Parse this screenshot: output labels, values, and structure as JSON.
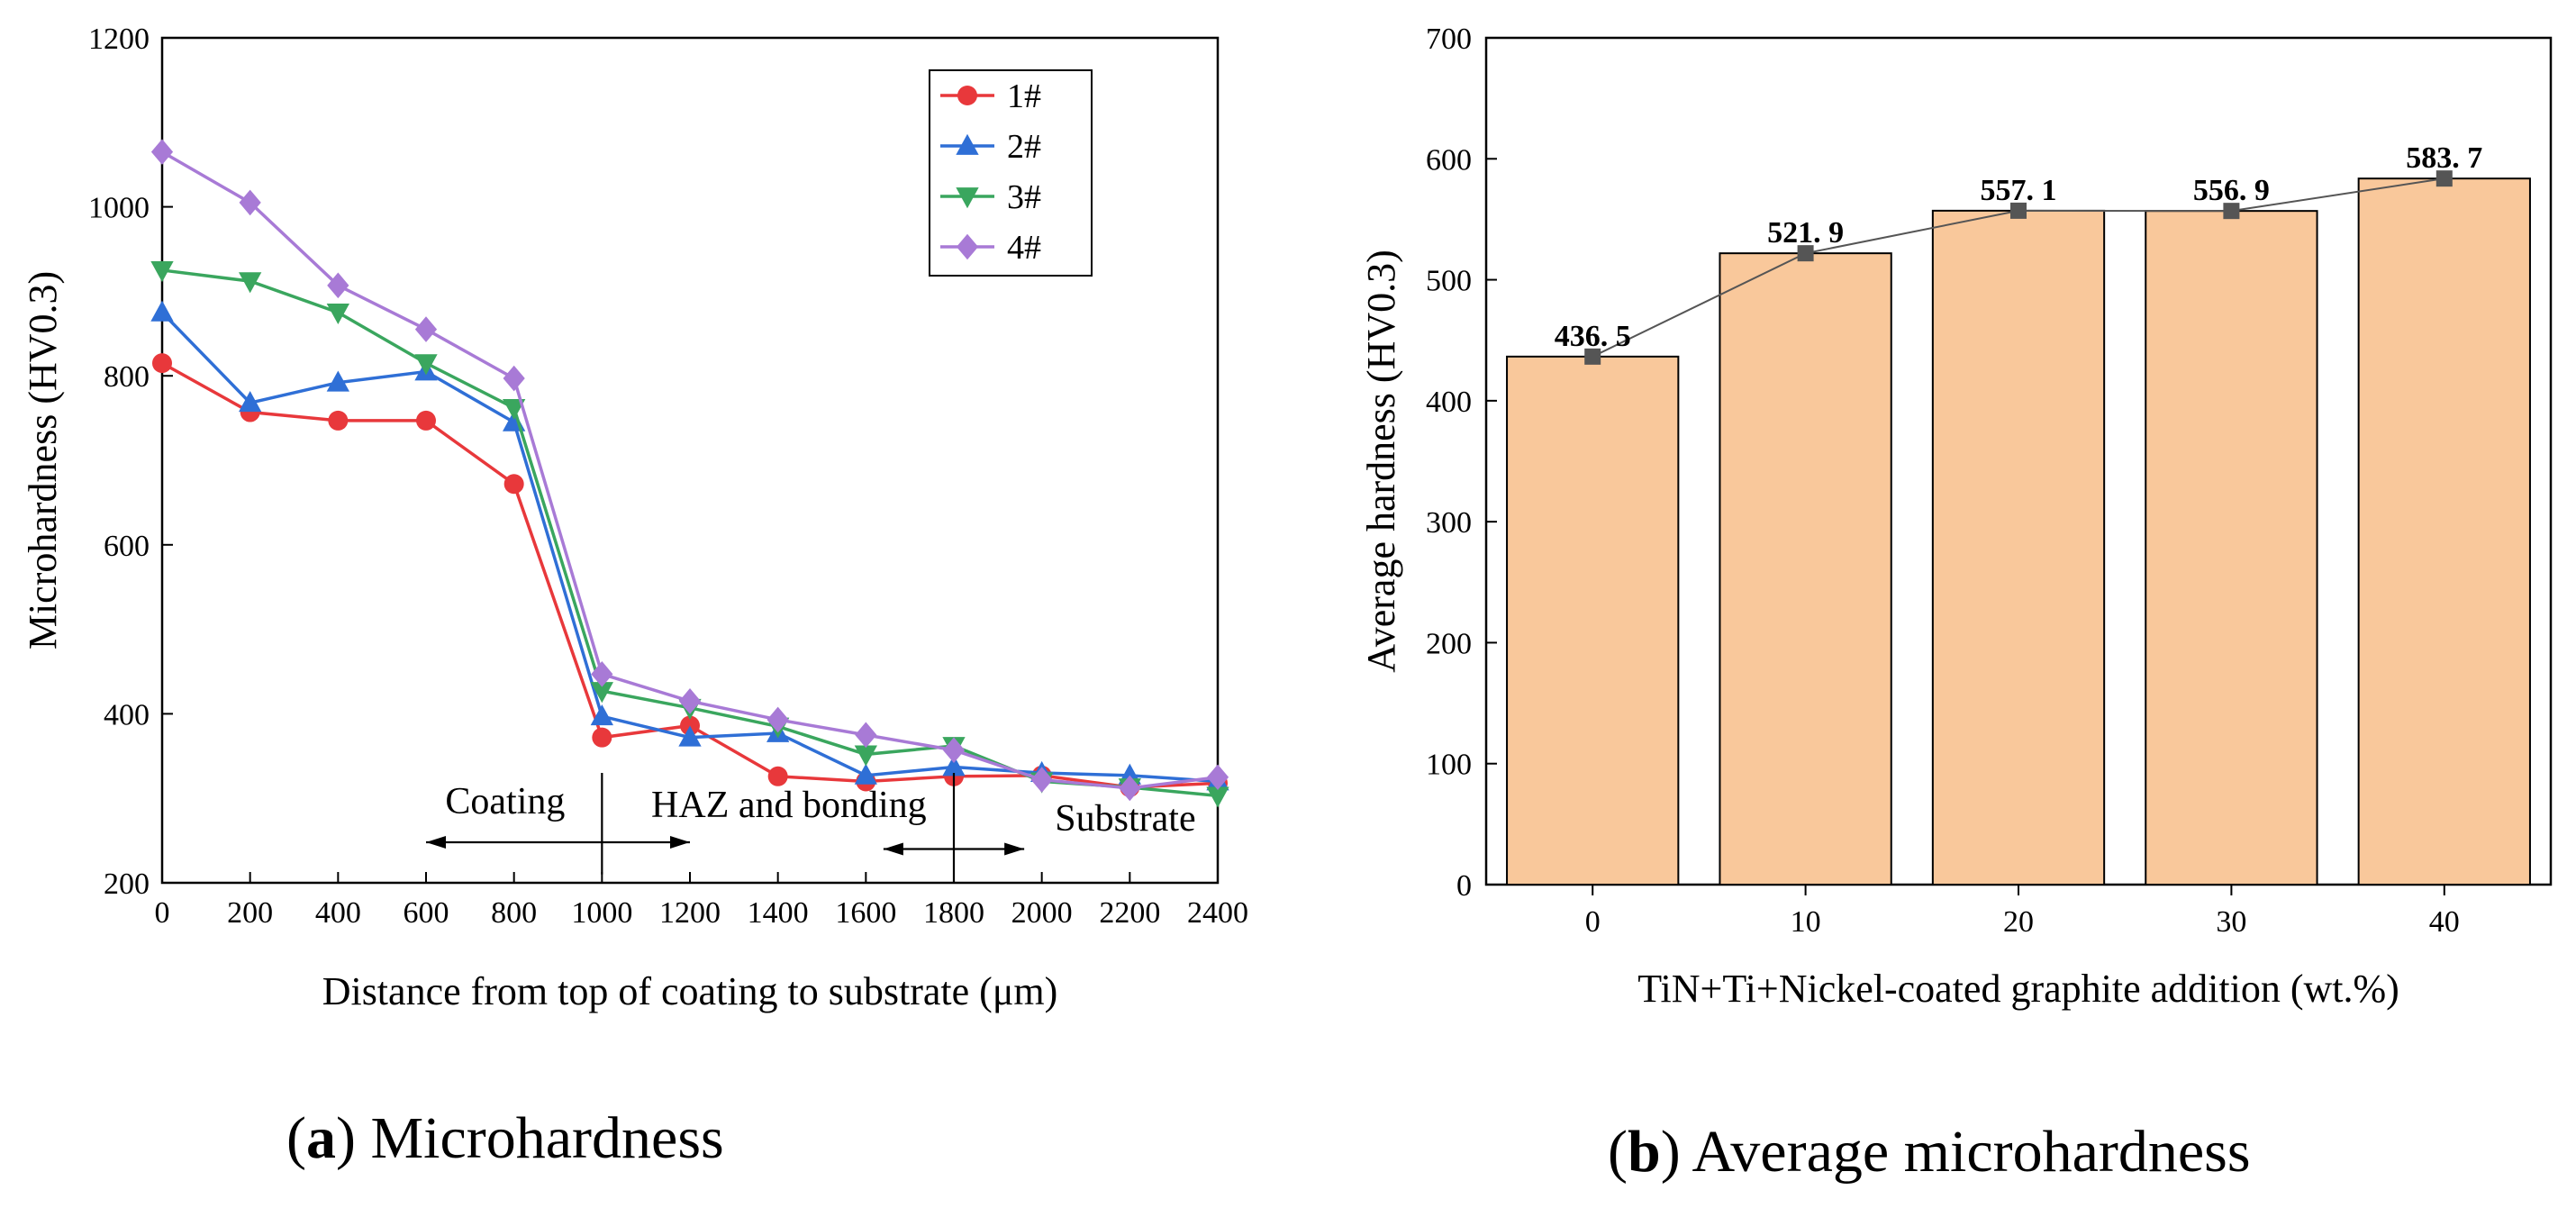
{
  "chart_data": [
    {
      "id": "a",
      "type": "line",
      "title": "",
      "caption": {
        "label": "a",
        "text": " Microhardness"
      },
      "xlabel": "Distance from top of coating to substrate (μm)",
      "ylabel": "Microhardness (HV0.3)",
      "xlim": [
        0,
        2400
      ],
      "ylim": [
        200,
        1200
      ],
      "xticks": [
        0,
        200,
        400,
        600,
        800,
        1000,
        1200,
        1400,
        1600,
        1800,
        2000,
        2200,
        2400
      ],
      "yticks": [
        200,
        400,
        600,
        800,
        1000,
        1200
      ],
      "legend_position": "top-right",
      "x": [
        0,
        200,
        400,
        600,
        800,
        1000,
        1200,
        1400,
        1600,
        1800,
        2000,
        2200,
        2400
      ],
      "series": [
        {
          "name": "1#",
          "marker": "circle",
          "color": "#e8383b",
          "values": [
            815,
            757,
            747,
            747,
            672,
            372,
            386,
            326,
            320,
            326,
            327,
            313,
            318
          ]
        },
        {
          "name": "2#",
          "marker": "triangle-up",
          "color": "#2f6fd6",
          "values": [
            875,
            768,
            792,
            805,
            745,
            397,
            372,
            377,
            327,
            337,
            330,
            327,
            320
          ]
        },
        {
          "name": "3#",
          "marker": "triangle-down",
          "color": "#3aa65e",
          "values": [
            925,
            912,
            875,
            815,
            762,
            427,
            407,
            385,
            352,
            362,
            320,
            313,
            303
          ]
        },
        {
          "name": "4#",
          "marker": "diamond",
          "color": "#a87ad6",
          "values": [
            1065,
            1005,
            907,
            855,
            797,
            447,
            415,
            393,
            375,
            357,
            322,
            312,
            325
          ]
        }
      ],
      "annotations": [
        {
          "text": "Coating",
          "x": 780,
          "y": 282,
          "arrow": [
            600,
            1200
          ]
        },
        {
          "text": "HAZ and bonding",
          "x": 1425,
          "y": 278,
          "divider": 1800
        },
        {
          "text": "Substrate",
          "x": 2190,
          "y": 262,
          "arrow": [
            1640,
            1960
          ]
        }
      ]
    },
    {
      "id": "b",
      "type": "bar",
      "title": "",
      "caption": {
        "label": "b",
        "text": " Average microhardness"
      },
      "xlabel": "TiN+Ti+Nickel-coated graphite addition (wt.%)",
      "ylabel": "Average hardness (HV0.3)",
      "ylim": [
        0,
        700
      ],
      "yticks": [
        0,
        100,
        200,
        300,
        400,
        500,
        600,
        700
      ],
      "categories": [
        "0",
        "10",
        "20",
        "30",
        "40"
      ],
      "values": [
        436.5,
        521.9,
        557.1,
        556.9,
        583.7
      ],
      "data_labels": [
        "436. 5",
        "521. 9",
        "557. 1",
        "556. 9",
        "583. 7"
      ],
      "bar_color": "#f9c89b",
      "line_color": "#555555"
    }
  ]
}
